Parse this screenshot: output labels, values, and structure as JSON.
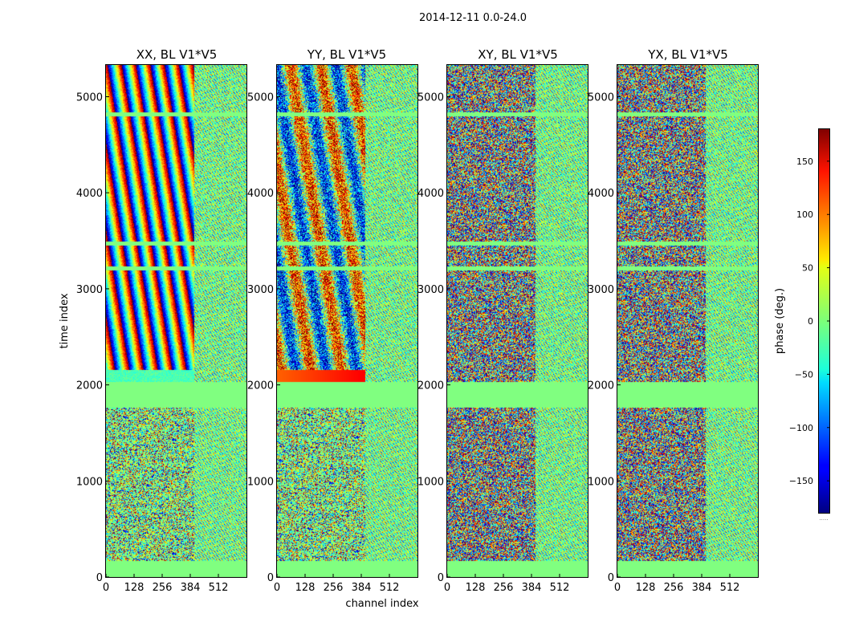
{
  "chart_data": {
    "type": "heatmap",
    "title": "2014-12-11 0.0-24.0",
    "xlabel": "channel index",
    "ylabel": "time index",
    "xlim": [
      0,
      640
    ],
    "ylim": [
      0,
      5330
    ],
    "xticks": [
      "0",
      "128",
      "256",
      "384",
      "512"
    ],
    "yticks": [
      "0",
      "1000",
      "2000",
      "3000",
      "4000",
      "5000"
    ],
    "panels": [
      {
        "title": "XX, BL V1*V5",
        "pattern": "fringe"
      },
      {
        "title": "YY, BL V1*V5",
        "pattern": "fringe-noisy"
      },
      {
        "title": "XY, BL V1*V5",
        "pattern": "noise"
      },
      {
        "title": "YX, BL V1*V5",
        "pattern": "noise"
      }
    ],
    "flagged_time_rows": [
      [
        0,
        160
      ],
      [
        1760,
        2030
      ],
      [
        3190,
        3230
      ],
      [
        3450,
        3490
      ],
      [
        4790,
        4830
      ]
    ],
    "band_split_channel": 400,
    "colorbar": {
      "label": "phase (deg.)",
      "range": [
        -180,
        180
      ],
      "ticks": [
        "150",
        "100",
        "50",
        "0",
        "−50",
        "−100",
        "−150"
      ],
      "tick_values": [
        150,
        100,
        50,
        0,
        -50,
        -100,
        -150
      ],
      "colormap": "jet"
    }
  }
}
